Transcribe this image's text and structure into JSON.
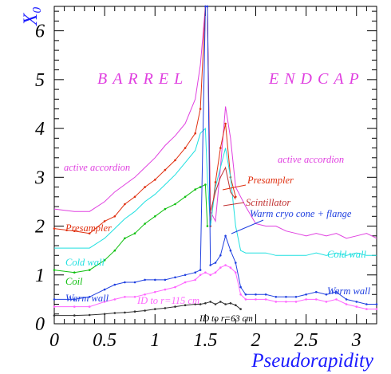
{
  "chart_data": {
    "type": "line",
    "title": "",
    "xlabel": "Pseudorapidity",
    "ylabel": "X₀",
    "xlim": [
      0,
      3.2
    ],
    "ylim": [
      0,
      6.5
    ],
    "x_ticks": [
      "0",
      "0.5",
      "1",
      "1.5",
      "2",
      "2.5",
      "3"
    ],
    "x_tick_values": [
      0,
      0.5,
      1,
      1.5,
      2,
      2.5,
      3
    ],
    "y_ticks": [
      "0",
      "1",
      "2",
      "3",
      "4",
      "5",
      "6"
    ],
    "y_tick_values": [
      0,
      1,
      2,
      3,
      4,
      5,
      6
    ],
    "grid": false,
    "regions": [
      "BARREL",
      "ENDCAP"
    ],
    "series": [
      {
        "name": "active accordion",
        "color": "#e040e0",
        "markers": false,
        "x": [
          0.0,
          0.2,
          0.35,
          0.5,
          0.6,
          0.7,
          0.8,
          0.9,
          1.0,
          1.1,
          1.2,
          1.3,
          1.4,
          1.45,
          1.5,
          1.52,
          1.55,
          1.6,
          1.65,
          1.7,
          1.75,
          1.8,
          1.85,
          1.9,
          2.0,
          2.1,
          2.2,
          2.3,
          2.4,
          2.5,
          2.6,
          2.7,
          2.8,
          2.9,
          3.0,
          3.1,
          3.2
        ],
        "y": [
          2.35,
          2.3,
          2.3,
          2.5,
          2.7,
          2.85,
          3.0,
          3.2,
          3.4,
          3.65,
          3.85,
          4.1,
          4.6,
          5.3,
          6.5,
          6.5,
          2.3,
          2.1,
          3.2,
          4.45,
          3.8,
          2.8,
          2.6,
          2.4,
          2.05,
          2.0,
          2.0,
          1.9,
          1.85,
          1.8,
          1.85,
          1.8,
          1.85,
          1.75,
          1.8,
          1.85,
          1.75
        ]
      },
      {
        "name": "Presampler",
        "color": "#e03010",
        "markers": true,
        "x": [
          0.0,
          0.2,
          0.35,
          0.5,
          0.6,
          0.7,
          0.8,
          0.9,
          1.0,
          1.1,
          1.2,
          1.3,
          1.4,
          1.45,
          1.5,
          1.52,
          1.55,
          1.6,
          1.65,
          1.7,
          1.75,
          1.8
        ],
        "y": [
          1.95,
          1.9,
          1.85,
          2.1,
          2.2,
          2.45,
          2.6,
          2.8,
          2.95,
          3.15,
          3.35,
          3.6,
          3.9,
          4.4,
          6.5,
          6.5,
          2.0,
          2.9,
          3.6,
          4.1,
          3.0,
          2.6
        ]
      },
      {
        "name": "Cold wall",
        "color": "#20e0e0",
        "markers": false,
        "x": [
          0.0,
          0.2,
          0.35,
          0.5,
          0.6,
          0.7,
          0.8,
          0.9,
          1.0,
          1.1,
          1.2,
          1.3,
          1.4,
          1.45,
          1.5,
          1.52,
          1.55,
          1.6,
          1.65,
          1.7,
          1.75,
          1.8,
          1.85,
          1.9,
          2.0,
          2.1,
          2.2,
          2.3,
          2.4,
          2.5,
          2.6,
          2.7,
          2.8,
          2.9,
          3.0,
          3.1,
          3.2
        ],
        "y": [
          1.55,
          1.55,
          1.55,
          1.75,
          1.95,
          2.15,
          2.3,
          2.5,
          2.65,
          2.85,
          3.05,
          3.3,
          3.55,
          3.9,
          4.0,
          3.0,
          2.0,
          2.8,
          3.2,
          3.6,
          3.0,
          2.0,
          1.5,
          1.45,
          1.45,
          1.45,
          1.4,
          1.4,
          1.4,
          1.4,
          1.45,
          1.4,
          1.45,
          1.4,
          1.45,
          1.4,
          1.4
        ]
      },
      {
        "name": "Coil",
        "color": "#10c010",
        "markers": true,
        "x": [
          0.0,
          0.2,
          0.35,
          0.5,
          0.6,
          0.7,
          0.8,
          0.9,
          1.0,
          1.1,
          1.2,
          1.3,
          1.4,
          1.45,
          1.5,
          1.52
        ],
        "y": [
          1.1,
          1.05,
          1.1,
          1.3,
          1.5,
          1.75,
          1.85,
          2.05,
          2.2,
          2.35,
          2.45,
          2.6,
          2.75,
          2.8,
          2.85,
          2.0
        ]
      },
      {
        "name": "Scintillator",
        "color": "#c03030",
        "markers": false,
        "x": [
          1.55,
          1.6,
          1.65,
          1.7,
          1.75,
          1.8
        ],
        "y": [
          2.3,
          2.7,
          3.0,
          3.2,
          2.7,
          2.55
        ]
      },
      {
        "name": "Warm wall",
        "color": "#2040e0",
        "markers": true,
        "x": [
          0.0,
          0.2,
          0.35,
          0.5,
          0.6,
          0.7,
          0.8,
          0.9,
          1.0,
          1.1,
          1.2,
          1.3,
          1.4,
          1.45,
          1.5,
          1.52,
          1.55,
          1.6,
          1.65,
          1.7,
          1.75,
          1.8,
          1.85,
          1.9,
          2.0,
          2.1,
          2.2,
          2.3,
          2.4,
          2.5,
          2.6,
          2.7,
          2.8,
          2.9,
          3.0,
          3.1,
          3.2
        ],
        "y": [
          0.5,
          0.5,
          0.55,
          0.7,
          0.8,
          0.85,
          0.85,
          0.9,
          0.9,
          0.9,
          0.95,
          1.0,
          1.05,
          1.1,
          6.5,
          6.5,
          1.2,
          1.25,
          1.4,
          1.8,
          1.5,
          1.25,
          0.75,
          0.6,
          0.6,
          0.6,
          0.55,
          0.55,
          0.55,
          0.6,
          0.65,
          0.6,
          0.65,
          0.5,
          0.45,
          0.4,
          0.4
        ]
      },
      {
        "name": "ID to r=115 cm",
        "color": "#ff66ff",
        "markers": true,
        "x": [
          0.0,
          0.2,
          0.35,
          0.5,
          0.6,
          0.7,
          0.8,
          0.9,
          1.0,
          1.1,
          1.2,
          1.3,
          1.4,
          1.45,
          1.5,
          1.55,
          1.6,
          1.65,
          1.7,
          1.75,
          1.8,
          1.85,
          1.9,
          2.0,
          2.1,
          2.2,
          2.3,
          2.4,
          2.5,
          2.6,
          2.7,
          2.8,
          2.9,
          3.0,
          3.1,
          3.2
        ],
        "y": [
          0.35,
          0.35,
          0.35,
          0.45,
          0.5,
          0.55,
          0.55,
          0.6,
          0.65,
          0.7,
          0.75,
          0.85,
          0.9,
          1.0,
          1.05,
          1.0,
          1.05,
          1.15,
          1.2,
          1.15,
          1.05,
          0.6,
          0.5,
          0.5,
          0.5,
          0.45,
          0.45,
          0.45,
          0.5,
          0.5,
          0.45,
          0.5,
          0.4,
          0.35,
          0.3,
          0.3
        ]
      },
      {
        "name": "ID to r=63 cm",
        "color": "#303030",
        "markers": true,
        "x": [
          0.0,
          0.2,
          0.35,
          0.5,
          0.6,
          0.7,
          0.8,
          0.9,
          1.0,
          1.1,
          1.2,
          1.3,
          1.4,
          1.45,
          1.5,
          1.55,
          1.6,
          1.65,
          1.7,
          1.75,
          1.8,
          1.85
        ],
        "y": [
          0.17,
          0.17,
          0.18,
          0.2,
          0.22,
          0.23,
          0.25,
          0.27,
          0.3,
          0.32,
          0.35,
          0.38,
          0.4,
          0.4,
          0.42,
          0.45,
          0.4,
          0.45,
          0.4,
          0.42,
          0.38,
          0.3
        ]
      }
    ],
    "annotations": [
      {
        "text": "active accordion",
        "color": "#e040e0"
      },
      {
        "text": "active accordion",
        "color": "#e040e0"
      },
      {
        "text": "Presampler",
        "color": "#e03010"
      },
      {
        "text": "Presampler",
        "color": "#e03010"
      },
      {
        "text": "Scintillator",
        "color": "#c03030"
      },
      {
        "text": "Warm cryo cone + flange",
        "color": "#2040e0"
      },
      {
        "text": "Cold wall",
        "color": "#20e0e0"
      },
      {
        "text": "Cold wall",
        "color": "#20e0e0"
      },
      {
        "text": "Coil",
        "color": "#10c010"
      },
      {
        "text": "Warm wall",
        "color": "#2040e0"
      },
      {
        "text": "Warm wall",
        "color": "#2040e0"
      },
      {
        "text": "ID to r=115 cm",
        "color": "#ff66ff"
      },
      {
        "text": "ID to r=63 cm",
        "color": "#000000"
      }
    ]
  }
}
